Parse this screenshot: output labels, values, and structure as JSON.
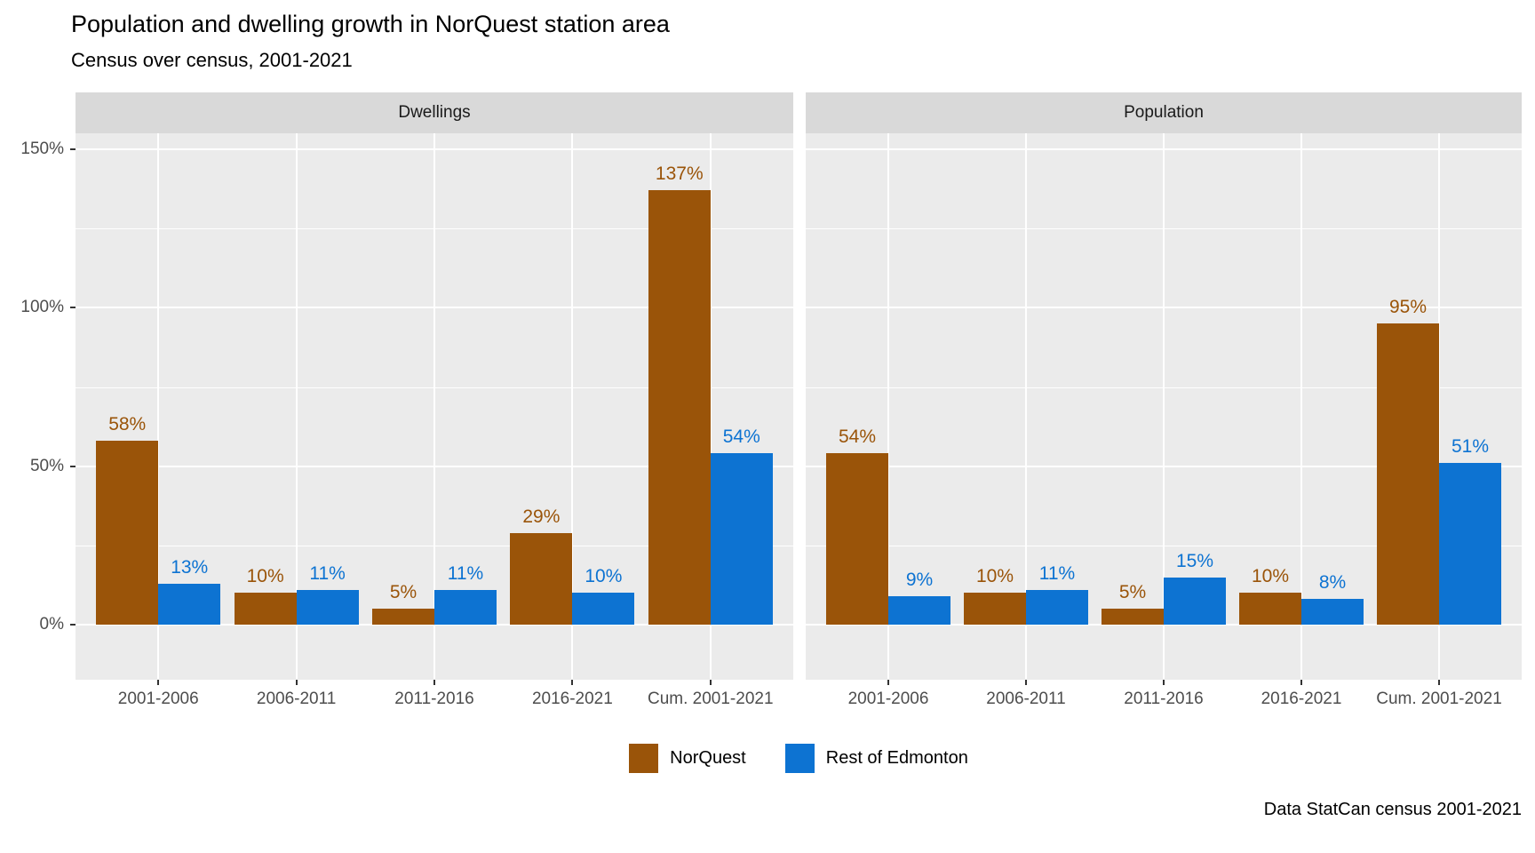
{
  "chart_data": {
    "type": "bar",
    "title": "Population and dwelling growth in NorQuest station area",
    "subtitle": "Census over census, 2001-2021",
    "caption": "Data StatCan census 2001-2021",
    "categories": [
      "2001-2006",
      "2006-2011",
      "2011-2016",
      "2016-2021",
      "Cum. 2001-2021"
    ],
    "y_axis": {
      "tick_labels": [
        "0%",
        "50%",
        "100%",
        "150%"
      ],
      "tick_values": [
        0,
        50,
        100,
        150
      ],
      "range_shown": [
        -17,
        156
      ],
      "unit": "percent growth"
    },
    "grid": {
      "horizontal_major": [
        0,
        50,
        100,
        150
      ],
      "horizontal_minor": [
        25,
        75,
        125
      ],
      "vertical": "category-centers"
    },
    "facets": [
      {
        "label": "Dwellings",
        "series": [
          {
            "name": "NorQuest",
            "color": "#9A5409",
            "values": [
              58,
              10,
              5,
              29,
              137
            ],
            "labels": [
              "58%",
              "10%",
              "5%",
              "29%",
              "137%"
            ]
          },
          {
            "name": "Rest of Edmonton",
            "color": "#0D73D2",
            "values": [
              13,
              11,
              11,
              10,
              54
            ],
            "labels": [
              "13%",
              "11%",
              "11%",
              "10%",
              "54%"
            ]
          }
        ]
      },
      {
        "label": "Population",
        "series": [
          {
            "name": "NorQuest",
            "color": "#9A5409",
            "values": [
              54,
              10,
              5,
              10,
              95
            ],
            "labels": [
              "54%",
              "10%",
              "5%",
              "10%",
              "95%"
            ]
          },
          {
            "name": "Rest of Edmonton",
            "color": "#0D73D2",
            "values": [
              9,
              11,
              15,
              8,
              51
            ],
            "labels": [
              "9%",
              "11%",
              "15%",
              "8%",
              "51%"
            ]
          }
        ]
      }
    ],
    "legend": {
      "position": "bottom",
      "items": [
        {
          "label": "NorQuest",
          "color": "#9A5409"
        },
        {
          "label": "Rest of Edmonton",
          "color": "#0D73D2"
        }
      ]
    }
  },
  "theme": {
    "background": "#FFFFFF",
    "panel_bg": "#EBEBEB",
    "strip_bg": "#D9D9D9",
    "grid_color": "#FFFFFF",
    "axis_text_color": "#4D4D4D",
    "tick_color": "#333333",
    "norquest_color": "#9A5409",
    "rest_of_edmonton_color": "#0D73D2"
  }
}
